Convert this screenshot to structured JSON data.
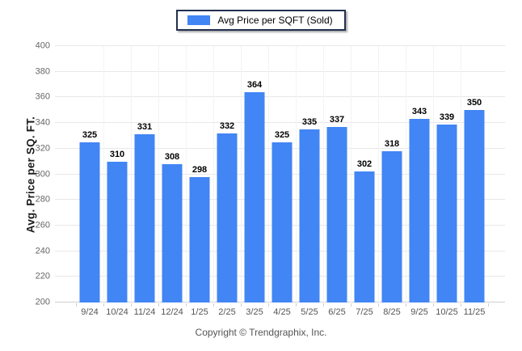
{
  "legend": {
    "label": "Avg Price per SQFT (Sold)",
    "swatch_color": "#4285f4"
  },
  "y_axis": {
    "title": "Avg. Price per SQ. FT."
  },
  "footer": {
    "copyright": "Copyright © Trendgraphix, Inc."
  },
  "colors": {
    "bar": "#4285f4",
    "gridline": "#e8e8e8",
    "axis_line": "#cfcfcf",
    "tick_label": "#666666",
    "legend_border": "#223050"
  },
  "chart_data": {
    "type": "bar",
    "title": "Avg Price per SQFT (Sold)",
    "categories": [
      "9/24",
      "10/24",
      "11/24",
      "12/24",
      "1/25",
      "2/25",
      "3/25",
      "4/25",
      "5/25",
      "6/25",
      "7/25",
      "8/25",
      "9/25",
      "10/25",
      "11/25"
    ],
    "values": [
      325,
      310,
      331,
      308,
      298,
      332,
      364,
      325,
      335,
      337,
      302,
      318,
      343,
      339,
      350
    ],
    "xlabel": "",
    "ylabel": "Avg. Price per SQ. FT.",
    "ylim": [
      200,
      400
    ],
    "yticks": [
      200,
      220,
      240,
      260,
      280,
      300,
      320,
      340,
      360,
      380,
      400
    ],
    "grid": true,
    "legend_position": "top-center",
    "value_labels": true,
    "bar_color": "#4285f4"
  }
}
